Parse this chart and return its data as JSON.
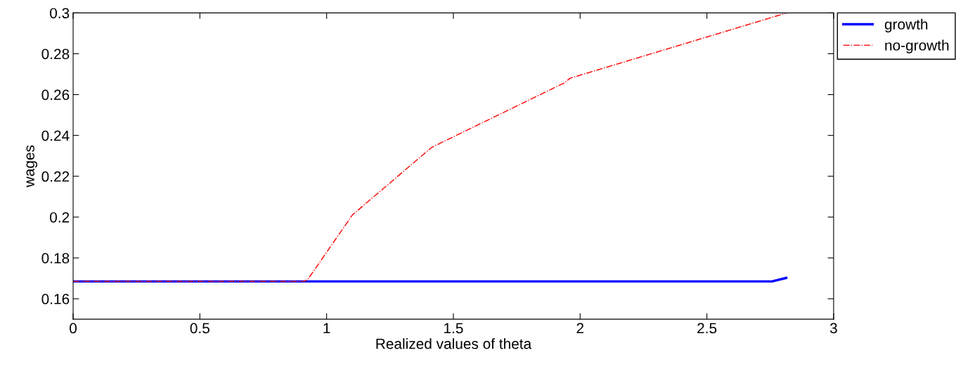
{
  "chart_data": {
    "type": "line",
    "xlabel": "Realized values of theta",
    "ylabel": "wages",
    "xlim": [
      0,
      3
    ],
    "xticks": [
      0,
      0.5,
      1,
      1.5,
      2,
      2.5,
      3
    ],
    "ylim": [
      0.15,
      0.3
    ],
    "yticks": [
      0.16,
      0.18,
      0.2,
      0.22,
      0.24,
      0.26,
      0.28,
      0.3
    ],
    "grid": false,
    "legend": "top right",
    "series": [
      {
        "name": "growth",
        "color": "#0000ff",
        "line_style": "solid",
        "x": [
          0,
          2.757,
          2.813
        ],
        "values": [
          0.1685,
          0.1685,
          0.1702
        ]
      },
      {
        "name": "no-growth",
        "color": "#ff0000",
        "line_style": "dashdot",
        "x": [
          0,
          0.911,
          0.926,
          1.102,
          1.415,
          1.503,
          1.937,
          1.96,
          2.815
        ],
        "values": [
          0.1685,
          0.1685,
          0.1695,
          0.2011,
          0.2342,
          0.2395,
          0.2657,
          0.268,
          0.3
        ]
      }
    ]
  }
}
